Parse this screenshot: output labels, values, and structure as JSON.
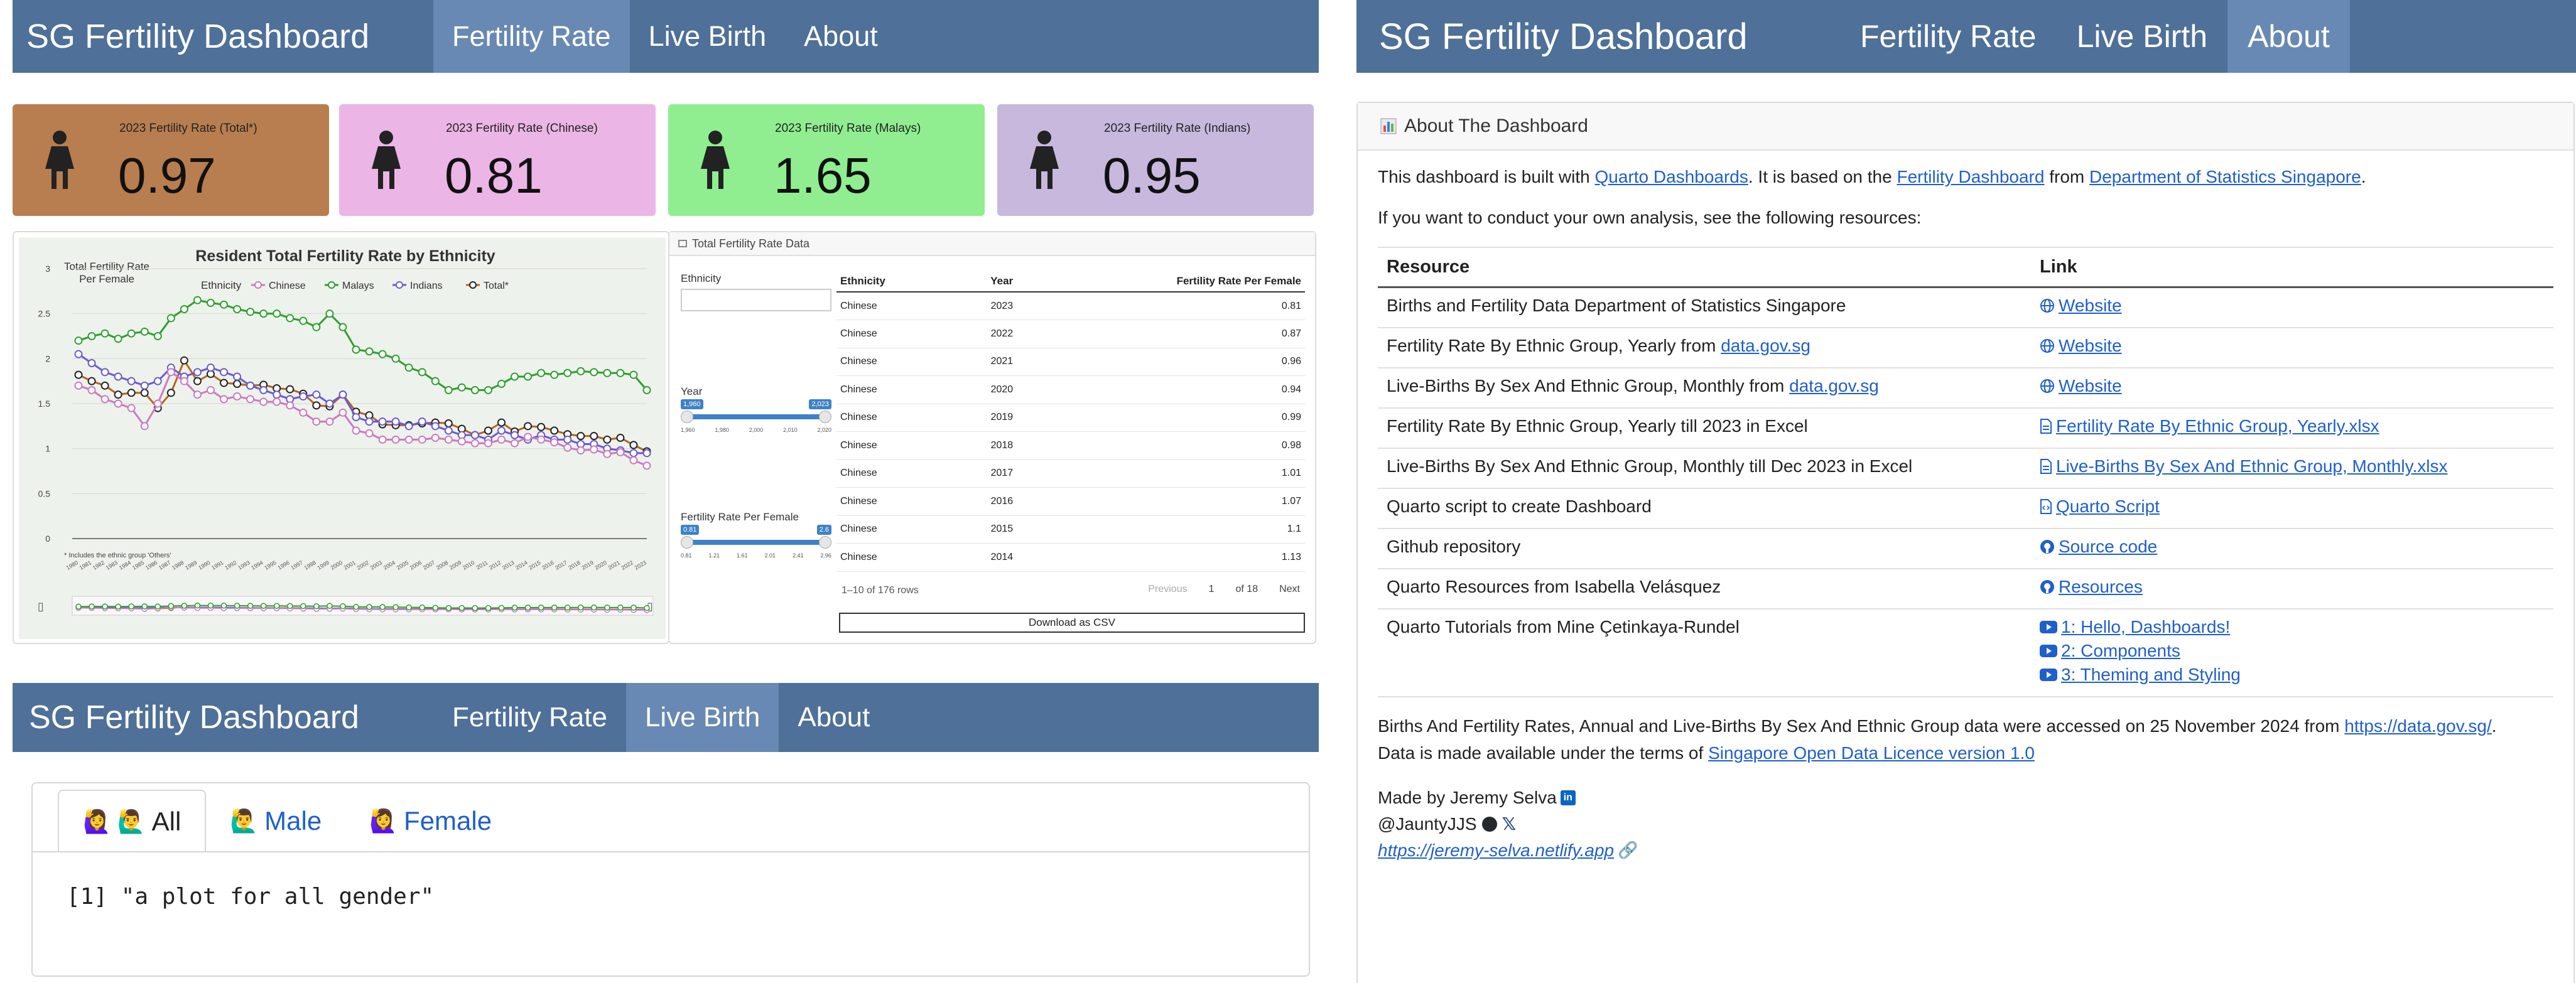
{
  "rate_page": {
    "brand": "SG Fertility Dashboard",
    "nav": [
      "Fertility Rate",
      "Live Birth",
      "About"
    ],
    "active_tab": "Fertility Rate",
    "value_boxes": [
      {
        "title": "2023 Fertility Rate (Total*)",
        "value": "0.97",
        "color": "#b87e50"
      },
      {
        "title": "2023 Fertility Rate (Chinese)",
        "value": "0.81",
        "color": "#ebb5e6"
      },
      {
        "title": "2023 Fertility Rate (Malays)",
        "value": "1.65",
        "color": "#90ee90"
      },
      {
        "title": "2023 Fertility Rate (Indians)",
        "value": "0.95",
        "color": "#c8b8de"
      }
    ],
    "chart": {
      "title": "Resident Total Fertility Rate by Ethnicity",
      "ylabel_line1": "Total Fertility Rate",
      "ylabel_line2": "Per Female",
      "legend_title": "Ethnicity",
      "footnote": "* Includes the ethnic group 'Others'"
    },
    "table_card": {
      "title": "Total Fertility Rate Data",
      "filter_ethnicity_label": "Ethnicity",
      "filter_year_label": "Year",
      "year_min_badge": "1,960",
      "year_max_badge": "2,023",
      "year_ticks": [
        "1,960",
        "1,980",
        "2,000",
        "2,010",
        "2,020"
      ],
      "filter_rate_label": "Fertility Rate Per Female",
      "rate_min_badge": "0.81",
      "rate_max_badge": "2.6",
      "rate_ticks": [
        "0.81",
        "1.21",
        "1.61",
        "2.01",
        "2.41",
        "2.96"
      ],
      "columns": [
        "Ethnicity",
        "Year",
        "Fertility Rate Per Female"
      ],
      "rows": [
        [
          "Chinese",
          "2023",
          "0.81"
        ],
        [
          "Chinese",
          "2022",
          "0.87"
        ],
        [
          "Chinese",
          "2021",
          "0.96"
        ],
        [
          "Chinese",
          "2020",
          "0.94"
        ],
        [
          "Chinese",
          "2019",
          "0.99"
        ],
        [
          "Chinese",
          "2018",
          "0.98"
        ],
        [
          "Chinese",
          "2017",
          "1.01"
        ],
        [
          "Chinese",
          "2016",
          "1.07"
        ],
        [
          "Chinese",
          "2015",
          "1.1"
        ],
        [
          "Chinese",
          "2014",
          "1.13"
        ]
      ],
      "rows_info": "1–10 of 176 rows",
      "prev_label": "Previous",
      "page_current": "1",
      "page_of": "of 18",
      "next_label": "Next",
      "download_label": "Download as CSV"
    }
  },
  "birth_page": {
    "brand": "SG Fertility Dashboard",
    "nav": [
      "Fertility Rate",
      "Live Birth",
      "About"
    ],
    "active_tab": "Live Birth",
    "tabs": [
      "All",
      "Male",
      "Female"
    ],
    "active_subtab": "All",
    "output": "[1] \"a plot for all gender\""
  },
  "about_page": {
    "brand": "SG Fertility Dashboard",
    "nav": [
      "Fertility Rate",
      "Live Birth",
      "About"
    ],
    "active_tab": "About",
    "card_title": "About The Dashboard",
    "intro": {
      "t1": "This dashboard is built with ",
      "l1": "Quarto Dashboards",
      "t2": ". It is based on the ",
      "l2": "Fertility Dashboard",
      "t3": " from ",
      "l3": "Department of Statistics Singapore",
      "t4": "."
    },
    "resources_intro": "If you want to conduct your own analysis, see the following resources:",
    "table_headers": [
      "Resource",
      "Link"
    ],
    "rows": [
      {
        "resource": "Births and Fertility Data Department of Statistics Singapore",
        "links": [
          {
            "icon": "globe-icon",
            "label": "Website"
          }
        ]
      },
      {
        "resource": "Fertility Rate By Ethnic Group, Yearly from ",
        "resource_link": "data.gov.sg",
        "links": [
          {
            "icon": "globe-icon",
            "label": "Website"
          }
        ]
      },
      {
        "resource": "Live-Births By Sex And Ethnic Group, Monthly from ",
        "resource_link": "data.gov.sg",
        "links": [
          {
            "icon": "globe-icon",
            "label": "Website"
          }
        ]
      },
      {
        "resource": "Fertility Rate By Ethnic Group, Yearly till 2023 in Excel",
        "links": [
          {
            "icon": "file-icon",
            "label": "Fertility Rate By Ethnic Group, Yearly.xlsx"
          }
        ]
      },
      {
        "resource": "Live-Births By Sex And Ethnic Group, Monthly till Dec 2023 in Excel",
        "links": [
          {
            "icon": "file-icon",
            "label": "Live-Births By Sex And Ethnic Group, Monthly.xlsx"
          }
        ]
      },
      {
        "resource": "Quarto script to create Dashboard",
        "links": [
          {
            "icon": "code-file-icon",
            "label": "Quarto Script"
          }
        ]
      },
      {
        "resource": "Github repository",
        "links": [
          {
            "icon": "github-icon",
            "label": "Source code"
          }
        ]
      },
      {
        "resource": "Quarto Resources from Isabella Velásquez",
        "links": [
          {
            "icon": "github-icon",
            "label": "Resources"
          }
        ]
      },
      {
        "resource": "Quarto Tutorials from Mine Çetinkaya-Rundel",
        "links": [
          {
            "icon": "youtube-icon",
            "label": "1: Hello, Dashboards!"
          },
          {
            "icon": "youtube-icon",
            "label": "2: Components"
          },
          {
            "icon": "youtube-icon",
            "label": "3: Theming and Styling"
          }
        ]
      }
    ],
    "access": {
      "t1": "Births And Fertility Rates, Annual and Live-Births By Sex And Ethnic Group data were accessed on 25 November 2024 from ",
      "l1": "https://data.gov.sg/",
      "t2": ".",
      "t3": "Data is made available under the terms of ",
      "l2": "Singapore Open Data Licence version 1.0"
    },
    "made_by": "Made by Jeremy Selva",
    "handle": "@JauntyJJS",
    "site": "https://jeremy-selva.netlify.app"
  },
  "chart_data": {
    "type": "line",
    "title": "Resident Total Fertility Rate by Ethnicity",
    "xlabel": "",
    "ylabel": "Total Fertility Rate Per Female",
    "ylim": [
      0,
      3
    ],
    "x": [
      1980,
      1981,
      1982,
      1983,
      1984,
      1985,
      1986,
      1987,
      1988,
      1989,
      1990,
      1991,
      1992,
      1993,
      1994,
      1995,
      1996,
      1997,
      1998,
      1999,
      2000,
      2001,
      2002,
      2003,
      2004,
      2005,
      2006,
      2007,
      2008,
      2009,
      2010,
      2011,
      2012,
      2013,
      2014,
      2015,
      2016,
      2017,
      2018,
      2019,
      2020,
      2021,
      2022,
      2023
    ],
    "series": [
      {
        "name": "Chinese",
        "color": "#cc79c0",
        "values": [
          1.7,
          1.65,
          1.55,
          1.5,
          1.45,
          1.25,
          1.5,
          1.85,
          1.75,
          1.6,
          1.65,
          1.55,
          1.58,
          1.55,
          1.52,
          1.52,
          1.48,
          1.4,
          1.3,
          1.3,
          1.4,
          1.2,
          1.17,
          1.1,
          1.1,
          1.1,
          1.1,
          1.12,
          1.1,
          1.08,
          1.06,
          1.06,
          1.1,
          1.06,
          1.13,
          1.1,
          1.07,
          1.01,
          0.98,
          0.99,
          0.94,
          0.96,
          0.87,
          0.81
        ]
      },
      {
        "name": "Malays",
        "color": "#2ca02c",
        "values": [
          2.2,
          2.25,
          2.28,
          2.22,
          2.28,
          2.3,
          2.25,
          2.45,
          2.55,
          2.65,
          2.62,
          2.6,
          2.55,
          2.52,
          2.5,
          2.5,
          2.45,
          2.42,
          2.35,
          2.5,
          2.35,
          2.1,
          2.08,
          2.05,
          2.0,
          1.9,
          1.85,
          1.75,
          1.65,
          1.68,
          1.65,
          1.65,
          1.72,
          1.8,
          1.8,
          1.84,
          1.82,
          1.84,
          1.86,
          1.85,
          1.84,
          1.84,
          1.82,
          1.65
        ]
      },
      {
        "name": "Indians",
        "color": "#6a5acd",
        "values": [
          2.05,
          1.95,
          1.85,
          1.8,
          1.75,
          1.7,
          1.75,
          1.9,
          1.8,
          1.85,
          1.9,
          1.85,
          1.8,
          1.7,
          1.65,
          1.6,
          1.55,
          1.58,
          1.6,
          1.5,
          1.6,
          1.35,
          1.3,
          1.3,
          1.3,
          1.25,
          1.3,
          1.25,
          1.2,
          1.15,
          1.15,
          1.1,
          1.2,
          1.15,
          1.1,
          1.15,
          1.1,
          1.1,
          1.05,
          1.05,
          1.0,
          0.98,
          0.95,
          0.95
        ]
      },
      {
        "name": "Total*",
        "color": "#b5651d",
        "values": [
          1.82,
          1.75,
          1.7,
          1.6,
          1.62,
          1.62,
          1.45,
          1.62,
          1.98,
          1.75,
          1.83,
          1.73,
          1.72,
          1.7,
          1.71,
          1.67,
          1.66,
          1.61,
          1.48,
          1.47,
          1.6,
          1.41,
          1.37,
          1.27,
          1.26,
          1.26,
          1.28,
          1.29,
          1.28,
          1.22,
          1.15,
          1.2,
          1.29,
          1.19,
          1.25,
          1.24,
          1.2,
          1.16,
          1.14,
          1.14,
          1.1,
          1.12,
          1.04,
          0.97
        ]
      }
    ]
  }
}
